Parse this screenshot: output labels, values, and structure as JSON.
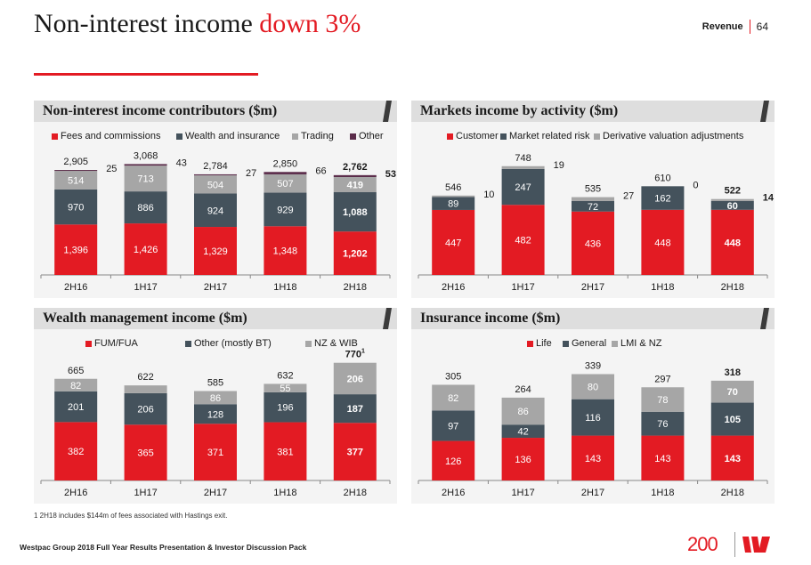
{
  "page": {
    "title_main": "Non-interest income ",
    "title_accent": "down 3%",
    "section": "Revenue",
    "page_number": "64",
    "footnote": "1 2H18 includes $144m of fees associated with Hastings exit.",
    "footer": "Westpac Group 2018 Full Year Results Presentation & Investor Discussion Pack",
    "logo_text": "200"
  },
  "colors": {
    "red": "#e31b23",
    "dark": "#44525c",
    "gray": "#a6a6a6",
    "purple": "#5b2c4a"
  },
  "chart_data": [
    {
      "type": "bar",
      "stacked": true,
      "title": "Non-interest income contributors ($m)",
      "categories": [
        "2H16",
        "1H17",
        "2H17",
        "1H18",
        "2H18"
      ],
      "series": [
        {
          "name": "Fees and commissions",
          "color": "red",
          "values": [
            1396,
            1426,
            1329,
            1348,
            1202
          ]
        },
        {
          "name": "Wealth and insurance",
          "color": "dark",
          "values": [
            970,
            886,
            924,
            929,
            1088
          ]
        },
        {
          "name": "Trading",
          "color": "gray",
          "values": [
            514,
            713,
            504,
            507,
            419
          ]
        },
        {
          "name": "Other",
          "color": "purple",
          "values": [
            25,
            43,
            27,
            66,
            53
          ]
        }
      ],
      "totals": [
        "2,905",
        "3,068",
        "2,784",
        "2,850",
        "2,762"
      ],
      "value_labels": [
        [
          "1,396",
          "1,426",
          "1,329",
          "1,348",
          "1,202"
        ],
        [
          "970",
          "886",
          "924",
          "929",
          "1,088"
        ],
        [
          "514",
          "713",
          "504",
          "507",
          "419"
        ],
        [
          "25",
          "43",
          "27",
          "66",
          "53"
        ]
      ],
      "side_label_series": 3,
      "bold_last": true,
      "ylim": [
        0,
        3300
      ],
      "legend": "top"
    },
    {
      "type": "bar",
      "stacked": true,
      "title": "Markets income by activity ($m)",
      "categories": [
        "2H16",
        "1H17",
        "2H17",
        "1H18",
        "2H18"
      ],
      "series": [
        {
          "name": "Customer",
          "color": "red",
          "values": [
            447,
            482,
            436,
            448,
            448
          ]
        },
        {
          "name": "Market related risk",
          "color": "dark",
          "values": [
            89,
            247,
            72,
            162,
            60
          ]
        },
        {
          "name": "Derivative valuation adjustments",
          "color": "gray",
          "values": [
            10,
            19,
            27,
            0,
            14
          ]
        }
      ],
      "totals": [
        "546",
        "748",
        "535",
        "610",
        "522"
      ],
      "value_labels": [
        [
          "447",
          "482",
          "436",
          "448",
          "448"
        ],
        [
          "89",
          "247",
          "72",
          "162",
          "60"
        ],
        [
          "10",
          "19",
          "27",
          "0",
          "14"
        ]
      ],
      "side_label_series": 2,
      "bold_last": true,
      "ylim": [
        0,
        820
      ],
      "legend": "top"
    },
    {
      "type": "bar",
      "stacked": true,
      "title": "Wealth management income ($m)",
      "categories": [
        "2H16",
        "1H17",
        "2H17",
        "1H18",
        "2H18"
      ],
      "series": [
        {
          "name": "FUM/FUA",
          "color": "red",
          "values": [
            382,
            365,
            371,
            381,
            377
          ]
        },
        {
          "name": "Other (mostly BT)",
          "color": "dark",
          "values": [
            201,
            206,
            128,
            196,
            187
          ]
        },
        {
          "name": "NZ & WIB",
          "color": "gray",
          "values": [
            82,
            51,
            86,
            55,
            206
          ]
        }
      ],
      "totals": [
        "665",
        "622",
        "585",
        "632",
        "770"
      ],
      "total_superscript": [
        "",
        "",
        "",
        "",
        "1"
      ],
      "value_labels": [
        [
          "382",
          "365",
          "371",
          "381",
          "377"
        ],
        [
          "201",
          "206",
          "128",
          "196",
          "187"
        ],
        [
          "82",
          "51",
          "86",
          "55",
          "206"
        ]
      ],
      "side_label_series": -1,
      "bold_last": true,
      "ylim": [
        0,
        780
      ],
      "legend": "top"
    },
    {
      "type": "bar",
      "stacked": true,
      "title": "Insurance income ($m)",
      "categories": [
        "2H16",
        "1H17",
        "2H17",
        "1H18",
        "2H18"
      ],
      "series": [
        {
          "name": "Life",
          "color": "red",
          "values": [
            126,
            136,
            143,
            143,
            143
          ]
        },
        {
          "name": "General",
          "color": "dark",
          "values": [
            97,
            42,
            116,
            76,
            105
          ]
        },
        {
          "name": "LMI & NZ",
          "color": "gray",
          "values": [
            82,
            86,
            80,
            78,
            70
          ]
        }
      ],
      "totals": [
        "305",
        "264",
        "339",
        "297",
        "318"
      ],
      "value_labels": [
        [
          "126",
          "136",
          "143",
          "143",
          "143"
        ],
        [
          "97",
          "42",
          "116",
          "76",
          "105"
        ],
        [
          "82",
          "86",
          "80",
          "78",
          "70"
        ]
      ],
      "side_label_series": -1,
      "bold_last": true,
      "ylim": [
        0,
        380
      ],
      "legend": "top"
    }
  ]
}
